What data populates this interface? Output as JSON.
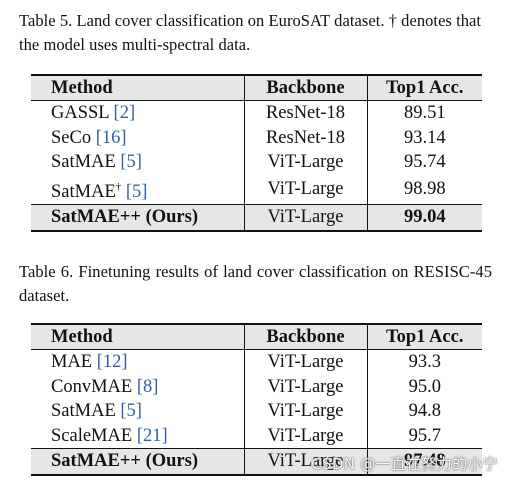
{
  "table5": {
    "caption": "Table 5. Land cover classification on EuroSAT dataset. † denotes that the model uses multi-spectral data.",
    "headers": {
      "method": "Method",
      "backbone": "Backbone",
      "acc": "Top1 Acc."
    },
    "rows": [
      {
        "method": "GASSL",
        "dagger": "",
        "ref": "[2]",
        "backbone": "ResNet-18",
        "acc": "89.51"
      },
      {
        "method": "SeCo",
        "dagger": "",
        "ref": "[16]",
        "backbone": "ResNet-18",
        "acc": "93.14"
      },
      {
        "method": "SatMAE",
        "dagger": "",
        "ref": "[5]",
        "backbone": "ViT-Large",
        "acc": "95.74"
      },
      {
        "method": "SatMAE",
        "dagger": "†",
        "ref": "[5]",
        "backbone": "ViT-Large",
        "acc": "98.98"
      },
      {
        "method": "SatMAE++ (Ours)",
        "dagger": "",
        "ref": "",
        "backbone": "ViT-Large",
        "acc": "99.04"
      }
    ]
  },
  "table6": {
    "caption": "Table 6.  Finetuning results of land cover classification on RESISC-45 dataset.",
    "headers": {
      "method": "Method",
      "backbone": "Backbone",
      "acc": "Top1 Acc."
    },
    "rows": [
      {
        "method": "MAE",
        "ref": "[12]",
        "backbone": "ViT-Large",
        "acc": "93.3"
      },
      {
        "method": "ConvMAE",
        "ref": "[8]",
        "backbone": "ViT-Large",
        "acc": "95.0"
      },
      {
        "method": "SatMAE",
        "ref": "[5]",
        "backbone": "ViT-Large",
        "acc": "94.8"
      },
      {
        "method": "ScaleMAE",
        "ref": "[21]",
        "backbone": "ViT-Large",
        "acc": "95.7"
      },
      {
        "method": "SatMAE++ (Ours)",
        "ref": "",
        "backbone": "ViT-Large",
        "acc": "97.48"
      }
    ]
  },
  "colors": {
    "link": "#2f5fa8",
    "highlight_row": "#e6e6e6"
  },
  "watermark": "CSDN @一直在努力的小宁"
}
